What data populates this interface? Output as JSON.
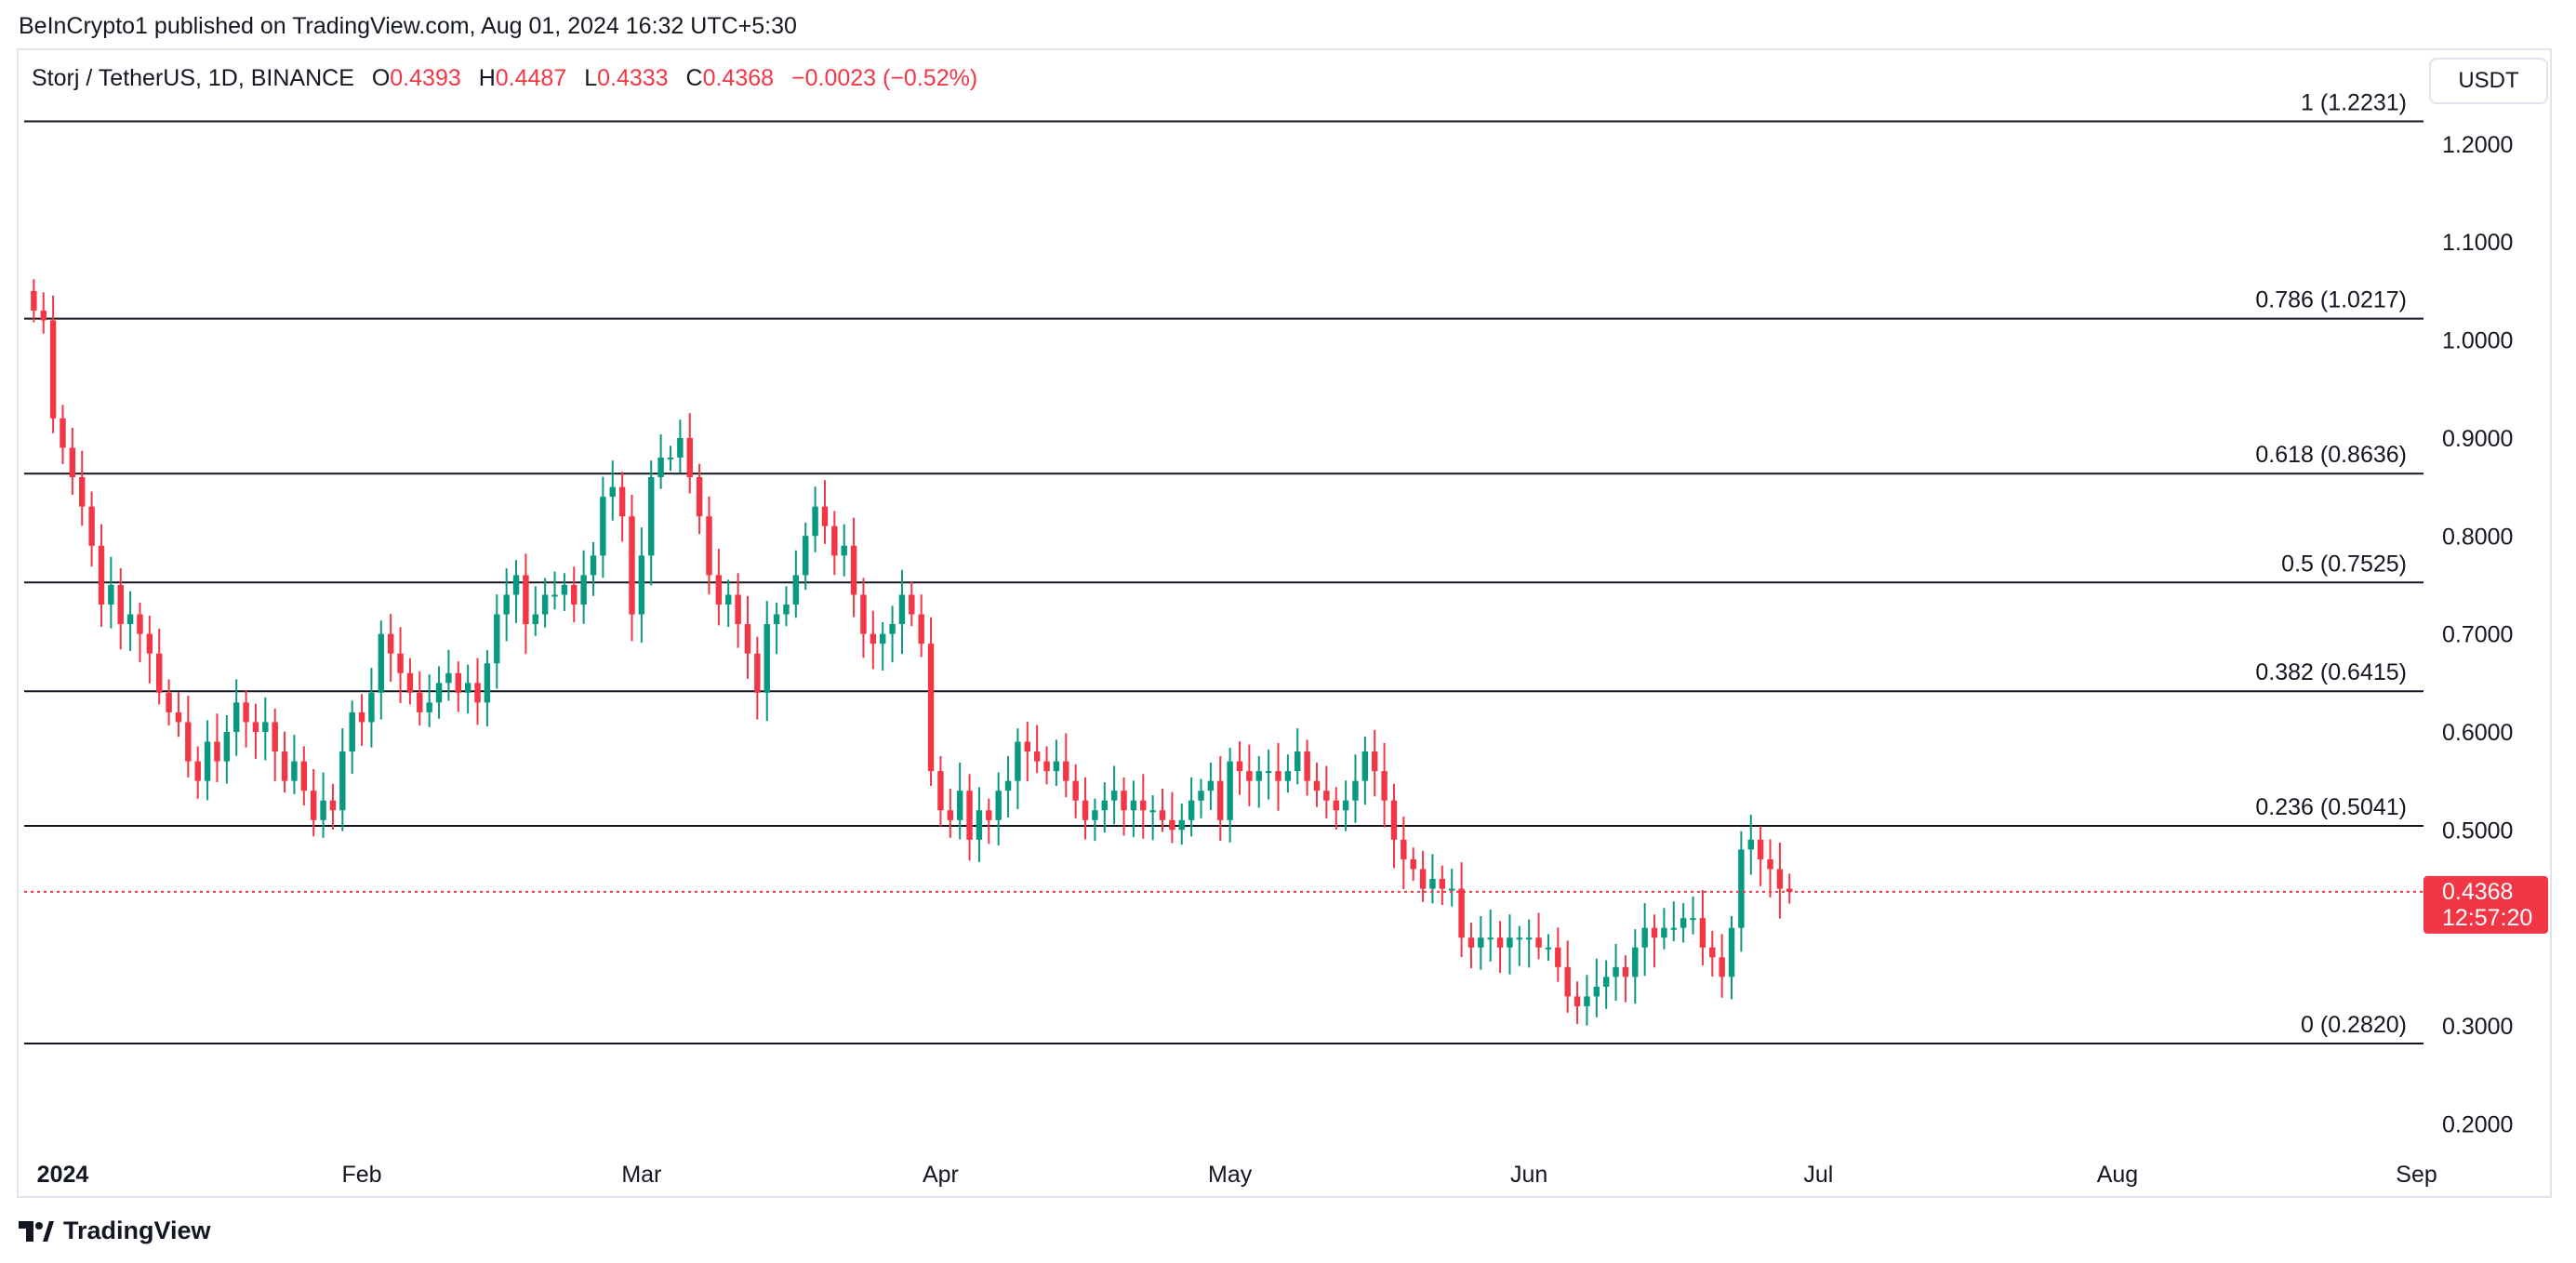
{
  "header": {
    "publisher_text": "BeInCrypto1 published on TradingView.com, Aug 01, 2024 16:32 UTC+5:30"
  },
  "legend": {
    "symbol": "Storj / TetherUS, 1D, BINANCE",
    "o_label": "O",
    "o_value": "0.4393",
    "h_label": "H",
    "h_value": "0.4487",
    "l_label": "L",
    "l_value": "0.4333",
    "c_label": "C",
    "c_value": "0.4368",
    "change": "−0.0023 (−0.52%)"
  },
  "currency_button": "USDT",
  "last_price": {
    "value": "0.4368",
    "countdown": "12:57:20"
  },
  "footer": {
    "brand": "TradingView"
  },
  "colors": {
    "up": "#089981",
    "down": "#f23645",
    "fib_line": "#131722",
    "price_line": "#f23645"
  },
  "chart_data": {
    "type": "candlestick",
    "title": "",
    "ylim": [
      0.17,
      1.29
    ],
    "y_ticks": [
      "1.2000",
      "1.1000",
      "1.0000",
      "0.9000",
      "0.8000",
      "0.7000",
      "0.6000",
      "0.5000",
      "0.3000",
      "0.2000"
    ],
    "x_ticks": [
      {
        "label": "2024",
        "date": "2024-01-01"
      },
      {
        "label": "Feb",
        "date": "2024-02-01"
      },
      {
        "label": "Mar",
        "date": "2024-03-01"
      },
      {
        "label": "Apr",
        "date": "2024-04-01"
      },
      {
        "label": "May",
        "date": "2024-05-01"
      },
      {
        "label": "Jun",
        "date": "2024-06-01"
      },
      {
        "label": "Jul",
        "date": "2024-07-01"
      },
      {
        "label": "Aug",
        "date": "2024-08-01"
      },
      {
        "label": "Sep",
        "date": "2024-09-01"
      }
    ],
    "x_range": [
      "2023-12-28",
      "2024-09-05"
    ],
    "fib_levels": [
      {
        "label": "1 (1.2231)",
        "value": 1.2231
      },
      {
        "label": "0.786 (1.0217)",
        "value": 1.0217
      },
      {
        "label": "0.618 (0.8636)",
        "value": 0.8636
      },
      {
        "label": "0.5 (0.7525)",
        "value": 0.7525
      },
      {
        "label": "0.382 (0.6415)",
        "value": 0.6415
      },
      {
        "label": "0.236 (0.5041)",
        "value": 0.5041
      },
      {
        "label": "0 (0.2820)",
        "value": 0.282
      }
    ],
    "last_close": 0.4368,
    "start_date": "2023-12-29",
    "closes": [
      1.03,
      1.02,
      0.92,
      0.89,
      0.86,
      0.83,
      0.79,
      0.73,
      0.75,
      0.71,
      0.72,
      0.7,
      0.68,
      0.64,
      0.62,
      0.61,
      0.57,
      0.55,
      0.59,
      0.57,
      0.6,
      0.63,
      0.61,
      0.6,
      0.61,
      0.58,
      0.55,
      0.57,
      0.54,
      0.51,
      0.53,
      0.52,
      0.58,
      0.62,
      0.61,
      0.64,
      0.7,
      0.68,
      0.66,
      0.64,
      0.62,
      0.63,
      0.65,
      0.66,
      0.64,
      0.65,
      0.63,
      0.67,
      0.72,
      0.74,
      0.76,
      0.71,
      0.72,
      0.74,
      0.74,
      0.75,
      0.73,
      0.76,
      0.78,
      0.84,
      0.85,
      0.82,
      0.72,
      0.78,
      0.86,
      0.88,
      0.88,
      0.9,
      0.86,
      0.82,
      0.76,
      0.73,
      0.74,
      0.71,
      0.68,
      0.64,
      0.71,
      0.72,
      0.73,
      0.76,
      0.8,
      0.83,
      0.81,
      0.78,
      0.79,
      0.74,
      0.7,
      0.69,
      0.7,
      0.71,
      0.74,
      0.72,
      0.69,
      0.56,
      0.52,
      0.51,
      0.54,
      0.49,
      0.52,
      0.51,
      0.54,
      0.55,
      0.59,
      0.58,
      0.57,
      0.56,
      0.57,
      0.55,
      0.53,
      0.51,
      0.52,
      0.53,
      0.54,
      0.52,
      0.53,
      0.52,
      0.52,
      0.51,
      0.5,
      0.51,
      0.53,
      0.54,
      0.55,
      0.51,
      0.57,
      0.56,
      0.55,
      0.56,
      0.56,
      0.55,
      0.56,
      0.58,
      0.55,
      0.54,
      0.53,
      0.52,
      0.53,
      0.55,
      0.58,
      0.56,
      0.53,
      0.49,
      0.47,
      0.46,
      0.44,
      0.45,
      0.44,
      0.44,
      0.39,
      0.38,
      0.39,
      0.39,
      0.38,
      0.39,
      0.39,
      0.39,
      0.38,
      0.38,
      0.36,
      0.33,
      0.32,
      0.33,
      0.34,
      0.35,
      0.36,
      0.35,
      0.38,
      0.4,
      0.39,
      0.4,
      0.4,
      0.41,
      0.41,
      0.38,
      0.37,
      0.35,
      0.4,
      0.48,
      0.49,
      0.47,
      0.46,
      0.44,
      0.4368
    ]
  }
}
